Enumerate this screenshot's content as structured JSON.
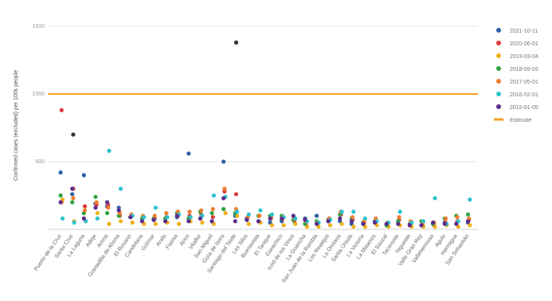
{
  "chart_data": {
    "type": "scatter",
    "title": "",
    "xlabel": "",
    "ylabel": "Confirmed cases (excluded) per 100k people",
    "ylim": [
      0,
      1500
    ],
    "yticks": [
      1500,
      1000,
      500
    ],
    "grid": true,
    "legend_position": "right",
    "categories": [
      "Puerto de la Cruz",
      "Santa Cruz",
      "La Laguna",
      "Adeje",
      "Arona",
      "Granadilla de Abona",
      "El Rosario",
      "Candelaria",
      "Güímar",
      "Arafo",
      "Fasnia",
      "Arico",
      "Vilaflor",
      "San Miguel",
      "Guía de Isora",
      "Santiago del Teide",
      "Los Silos",
      "Buenavista",
      "El Tanque",
      "Garachico",
      "Icod de los Vinos",
      "La Guancha",
      "San Juan de la Rambla",
      "Los Realejos",
      "La Orotava",
      "Santa Úrsula",
      "La Victoria",
      "La Matanza",
      "El Sauzal",
      "Tacoronte",
      "Tegueste",
      "Valle Gran Rey",
      "Vallehermoso",
      "Agulo",
      "Hermigua",
      "San Sebastián"
    ],
    "series": [
      {
        "name": "2021-10-11",
        "color": "#2e5fa6",
        "values": [
          420,
          260,
          400,
          190,
          170,
          160,
          90,
          80,
          70,
          60,
          90,
          560,
          80,
          60,
          500,
          100,
          80,
          60,
          50,
          60,
          70,
          80,
          100,
          60,
          60,
          40,
          50,
          60,
          40,
          60,
          40,
          30,
          40,
          50,
          40,
          50
        ]
      },
      {
        "name": "2020-06-01",
        "color": "#e03a3a",
        "values": [
          880,
          300,
          170,
          180,
          180,
          100,
          110,
          90,
          80,
          90,
          100,
          100,
          110,
          90,
          280,
          260,
          90,
          100,
          90,
          80,
          60,
          40,
          40,
          80,
          110,
          70,
          50,
          60,
          40,
          70,
          40,
          40,
          30,
          50,
          60,
          70
        ]
      },
      {
        "name": "2019-03-04",
        "color": "#f0b01c",
        "values": [
          220,
          60,
          60,
          120,
          40,
          60,
          50,
          40,
          40,
          50,
          40,
          60,
          50,
          40,
          120,
          100,
          40,
          50,
          30,
          30,
          40,
          20,
          20,
          30,
          40,
          20,
          20,
          30,
          20,
          30,
          20,
          20,
          20,
          30,
          20,
          30
        ]
      },
      {
        "name": "2018-09-03",
        "color": "#2ea344",
        "values": [
          250,
          200,
          120,
          240,
          120,
          100,
          90,
          80,
          80,
          80,
          120,
          80,
          130,
          120,
          150,
          120,
          70,
          100,
          100,
          100,
          70,
          40,
          60,
          70,
          110,
          80,
          40,
          50,
          30,
          60,
          30,
          60,
          40,
          80,
          100,
          110
        ]
      },
      {
        "name": "2017-05-01",
        "color": "#ef7d2e",
        "values": [
          200,
          230,
          140,
          200,
          160,
          120,
          110,
          100,
          100,
          120,
          130,
          130,
          140,
          150,
          300,
          150,
          90,
          100,
          80,
          90,
          80,
          60,
          50,
          80,
          130,
          90,
          60,
          80,
          50,
          90,
          60,
          40,
          50,
          80,
          90,
          80
        ]
      },
      {
        "name": "2016-02-01",
        "color": "#2cc3cf",
        "values": [
          80,
          50,
          60,
          80,
          580,
          300,
          100,
          90,
          160,
          90,
          110,
          90,
          100,
          250,
          240,
          130,
          110,
          140,
          110,
          90,
          80,
          60,
          50,
          70,
          130,
          130,
          80,
          60,
          50,
          130,
          50,
          60,
          230,
          40,
          60,
          220
        ]
      },
      {
        "name": "2015-01-05",
        "color": "#5b2d8e",
        "values": [
          200,
          300,
          80,
          160,
          200,
          140,
          90,
          60,
          70,
          60,
          100,
          60,
          80,
          60,
          230,
          60,
          70,
          60,
          80,
          80,
          100,
          70,
          40,
          60,
          80,
          60,
          40,
          50,
          40,
          40,
          30,
          30,
          50,
          40,
          40,
          60
        ]
      },
      {
        "name": "Outliers",
        "color": "#333333",
        "values": [
          null,
          700,
          null,
          null,
          null,
          null,
          null,
          null,
          null,
          null,
          null,
          null,
          null,
          null,
          null,
          1380,
          null,
          null,
          null,
          null,
          null,
          null,
          null,
          null,
          null,
          null,
          null,
          null,
          null,
          null,
          null,
          null,
          null,
          null,
          null,
          null
        ]
      }
    ],
    "threshold": {
      "name": "Estimate",
      "value": 1000,
      "color": "#f0a21c"
    }
  }
}
